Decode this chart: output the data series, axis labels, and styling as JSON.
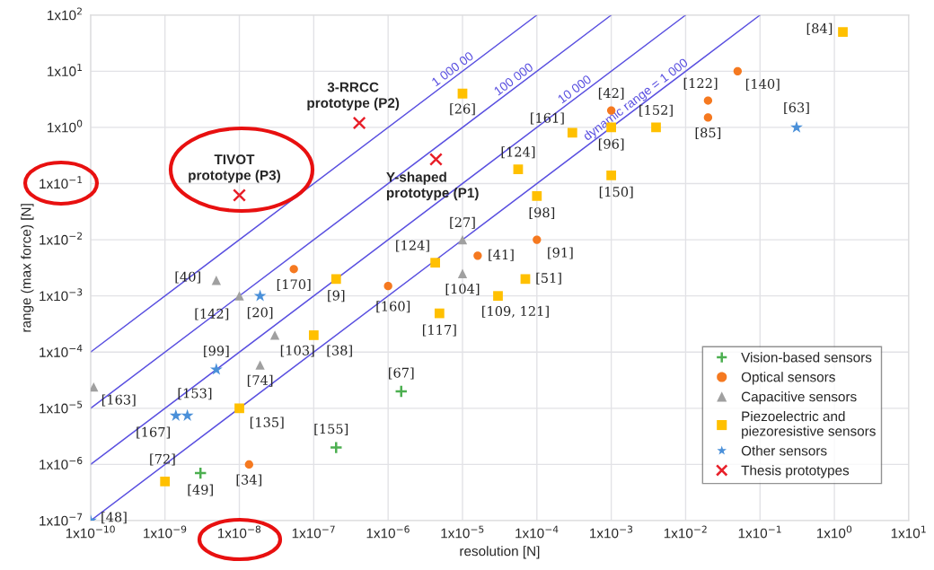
{
  "chart_data": {
    "type": "scatter",
    "xlabel": "resolution [N]",
    "ylabel": "range (max force) [N]",
    "log": "xy",
    "grid": true,
    "legend": "bottom right",
    "xlim": [
      1e-10,
      10
    ],
    "ylim": [
      1e-07,
      100
    ],
    "xticks": [
      {
        "value": 1e-10,
        "label": "1x10$^{−10}$"
      },
      {
        "value": 1e-09,
        "label": "1x10$^{−9}$"
      },
      {
        "value": 1e-08,
        "label": "1x10$^{−8}$"
      },
      {
        "value": 1e-07,
        "label": "1x10$^{−7}$"
      },
      {
        "value": 1e-06,
        "label": "1x10$^{−6}$"
      },
      {
        "value": 1e-05,
        "label": "1x10$^{−5}$"
      },
      {
        "value": 0.0001,
        "label": "1x10$^{−4}$"
      },
      {
        "value": 0.001,
        "label": "1x10$^{−3}$"
      },
      {
        "value": 0.01,
        "label": "1x10$^{−2}$"
      },
      {
        "value": 0.1,
        "label": "1x10$^{−1}$"
      },
      {
        "value": 1,
        "label": "1x10$^{0}$"
      },
      {
        "value": 10,
        "label": "1x10$^{1}$"
      }
    ],
    "yticks": [
      {
        "value": 1e-07,
        "label": "1x10$^{−7}$"
      },
      {
        "value": 1e-06,
        "label": "1x10$^{−6}$"
      },
      {
        "value": 1e-05,
        "label": "1x10$^{−5}$"
      },
      {
        "value": 0.0001,
        "label": "1x10$^{−4}$"
      },
      {
        "value": 0.001,
        "label": "1x10$^{−3}$"
      },
      {
        "value": 0.01,
        "label": "1x10$^{−2}$"
      },
      {
        "value": 0.1,
        "label": "1x10$^{−1}$"
      },
      {
        "value": 1,
        "label": "1x10$^{0}$"
      },
      {
        "value": 10,
        "label": "1x10$^{1}$"
      },
      {
        "value": 100,
        "label": "1x10$^{2}$"
      }
    ],
    "series": [
      {
        "type": "line",
        "name": "1 000 00",
        "color": "#5a50e0",
        "line_style": "solid",
        "x": [
          1e-10,
          0.0001
        ],
        "values": [
          0.0001,
          100
        ]
      },
      {
        "type": "line",
        "name": "100 000",
        "color": "#5a50e0",
        "line_style": "solid",
        "x": [
          1e-10,
          0.001
        ],
        "values": [
          1e-05,
          100
        ]
      },
      {
        "type": "line",
        "name": "10 000",
        "color": "#5a50e0",
        "line_style": "solid",
        "x": [
          1e-10,
          0.01
        ],
        "values": [
          1e-06,
          100
        ]
      },
      {
        "type": "line",
        "name": "dynamic range = 1 000",
        "color": "#5a50e0",
        "line_style": "solid",
        "x": [
          1e-10,
          0.1
        ],
        "values": [
          1e-07,
          100
        ]
      },
      {
        "name": "Vision-based sensors",
        "color": "#4caf50",
        "marker": "plus",
        "x": [
          1.5e-06,
          2e-07,
          3e-09
        ],
        "values": [
          2e-05,
          2e-06,
          7e-07
        ]
      },
      {
        "name": "Optical sensors",
        "color": "#f57920",
        "marker": "circle",
        "x": [
          5.4e-08,
          1e-06,
          1.6e-05,
          0.0001,
          0.001,
          0.02,
          0.02,
          0.05,
          1.35e-08
        ],
        "values": [
          0.003,
          0.0015,
          0.0052,
          0.01,
          2,
          3,
          1.5,
          10,
          1e-06
        ]
      },
      {
        "name": "Capacitive sensors",
        "color": "#a0a0a0",
        "marker": "triangle",
        "x": [
          4.9e-09,
          1e-08,
          1e-05,
          1e-05,
          3e-08,
          1.9e-08,
          1.1e-10
        ],
        "values": [
          0.0019,
          0.001,
          0.01,
          0.0025,
          0.0002,
          5.9e-05,
          2.4e-05
        ]
      },
      {
        "name": "Piezoelectric and\npiezoresistive sensors",
        "color": "#ffc000",
        "marker": "square",
        "x": [
          1e-05,
          1.3,
          0.0003,
          0.001,
          0.004,
          5.6e-05,
          0.001,
          0.0001,
          4.3e-06,
          2e-07,
          7e-05,
          3e-05,
          4.9e-06,
          1e-07,
          1e-08,
          1e-09
        ],
        "values": [
          4,
          50,
          0.8,
          1,
          1,
          0.18,
          0.14,
          0.06,
          0.0039,
          0.002,
          0.002,
          0.001,
          0.00049,
          0.0002,
          1e-05,
          5e-07
        ]
      },
      {
        "name": "Other sensors",
        "color": "#4a90d9",
        "marker": "star",
        "x": [
          0.31,
          1.9e-08,
          4.9e-09,
          1.4e-09,
          2e-09,
          1e-10
        ],
        "values": [
          1,
          0.001,
          4.9e-05,
          7.4e-06,
          7.4e-06,
          1e-07
        ]
      },
      {
        "name": "Thesis prototypes",
        "color": "#e8202a",
        "marker": "cross",
        "x": [
          4.1e-07,
          4.4e-06,
          1e-08
        ],
        "values": [
          1.2,
          0.27,
          0.062
        ]
      }
    ],
    "annotations": [
      {
        "text": "[67]",
        "x": 1.5e-06,
        "y": 2e-05
      },
      {
        "text": "[155]",
        "x": 2e-07,
        "y": 2e-06
      },
      {
        "text": "[49]",
        "x": 3e-09,
        "y": 7e-07
      },
      {
        "text": "[170]",
        "x": 5.4e-08,
        "y": 0.003
      },
      {
        "text": "[160]",
        "x": 1e-06,
        "y": 0.0015
      },
      {
        "text": "[41]",
        "x": 1.6e-05,
        "y": 0.0052
      },
      {
        "text": "[91]",
        "x": 0.0001,
        "y": 0.01
      },
      {
        "text": "[42]",
        "x": 0.001,
        "y": 2
      },
      {
        "text": "[122]",
        "x": 0.02,
        "y": 3
      },
      {
        "text": "[85]",
        "x": 0.02,
        "y": 1.5
      },
      {
        "text": "[140]",
        "x": 0.05,
        "y": 10
      },
      {
        "text": "[34]",
        "x": 1.35e-08,
        "y": 1e-06
      },
      {
        "text": "[40]",
        "x": 4.9e-09,
        "y": 0.0019
      },
      {
        "text": "[142]",
        "x": 1e-08,
        "y": 0.001
      },
      {
        "text": "[27]",
        "x": 1e-05,
        "y": 0.01
      },
      {
        "text": "[104]",
        "x": 1e-05,
        "y": 0.0025
      },
      {
        "text": "[103]",
        "x": 3e-08,
        "y": 0.0002
      },
      {
        "text": "[74]",
        "x": 1.9e-08,
        "y": 5.9e-05
      },
      {
        "text": "[163]",
        "x": 1.1e-10,
        "y": 2.4e-05
      },
      {
        "text": "[26]",
        "x": 1e-05,
        "y": 4
      },
      {
        "text": "[84]",
        "x": 1.3,
        "y": 50
      },
      {
        "text": "[161]",
        "x": 0.0003,
        "y": 0.8
      },
      {
        "text": "[96]",
        "x": 0.001,
        "y": 1
      },
      {
        "text": "[152]",
        "x": 0.004,
        "y": 1
      },
      {
        "text": "[124]",
        "x": 5.6e-05,
        "y": 0.18
      },
      {
        "text": "[150]",
        "x": 0.001,
        "y": 0.14
      },
      {
        "text": "[98]",
        "x": 0.0001,
        "y": 0.06
      },
      {
        "text": "[124]",
        "x": 4.3e-06,
        "y": 0.0039
      },
      {
        "text": "[9]",
        "x": 2e-07,
        "y": 0.002
      },
      {
        "text": "[51]",
        "x": 7e-05,
        "y": 0.002
      },
      {
        "text": "[109, 121]",
        "x": 3e-05,
        "y": 0.001
      },
      {
        "text": "[117]",
        "x": 4.9e-06,
        "y": 0.00049
      },
      {
        "text": "[38]",
        "x": 1e-07,
        "y": 0.0002
      },
      {
        "text": "[135]",
        "x": 1e-08,
        "y": 1e-05
      },
      {
        "text": "[72]",
        "x": 1e-09,
        "y": 5e-07
      },
      {
        "text": "[63]",
        "x": 0.31,
        "y": 1
      },
      {
        "text": "[20]",
        "x": 1.9e-08,
        "y": 0.001
      },
      {
        "text": "[99]",
        "x": 4.9e-09,
        "y": 4.9e-05
      },
      {
        "text": "[167]",
        "x": 1.4e-09,
        "y": 7.4e-06
      },
      {
        "text": "[153]",
        "x": 2e-09,
        "y": 7.4e-06
      },
      {
        "text": "[48]",
        "x": 1e-10,
        "y": 1e-07
      },
      {
        "text": "3-RRCC\nprototype (P2)",
        "x": 4.1e-07,
        "y": 1.2
      },
      {
        "text": "Y-shaped\nprototype (P1)",
        "x": 4.4e-06,
        "y": 0.27
      },
      {
        "text": "TIVOT\nprototype (P3)",
        "x": 1e-08,
        "y": 0.062
      }
    ]
  }
}
